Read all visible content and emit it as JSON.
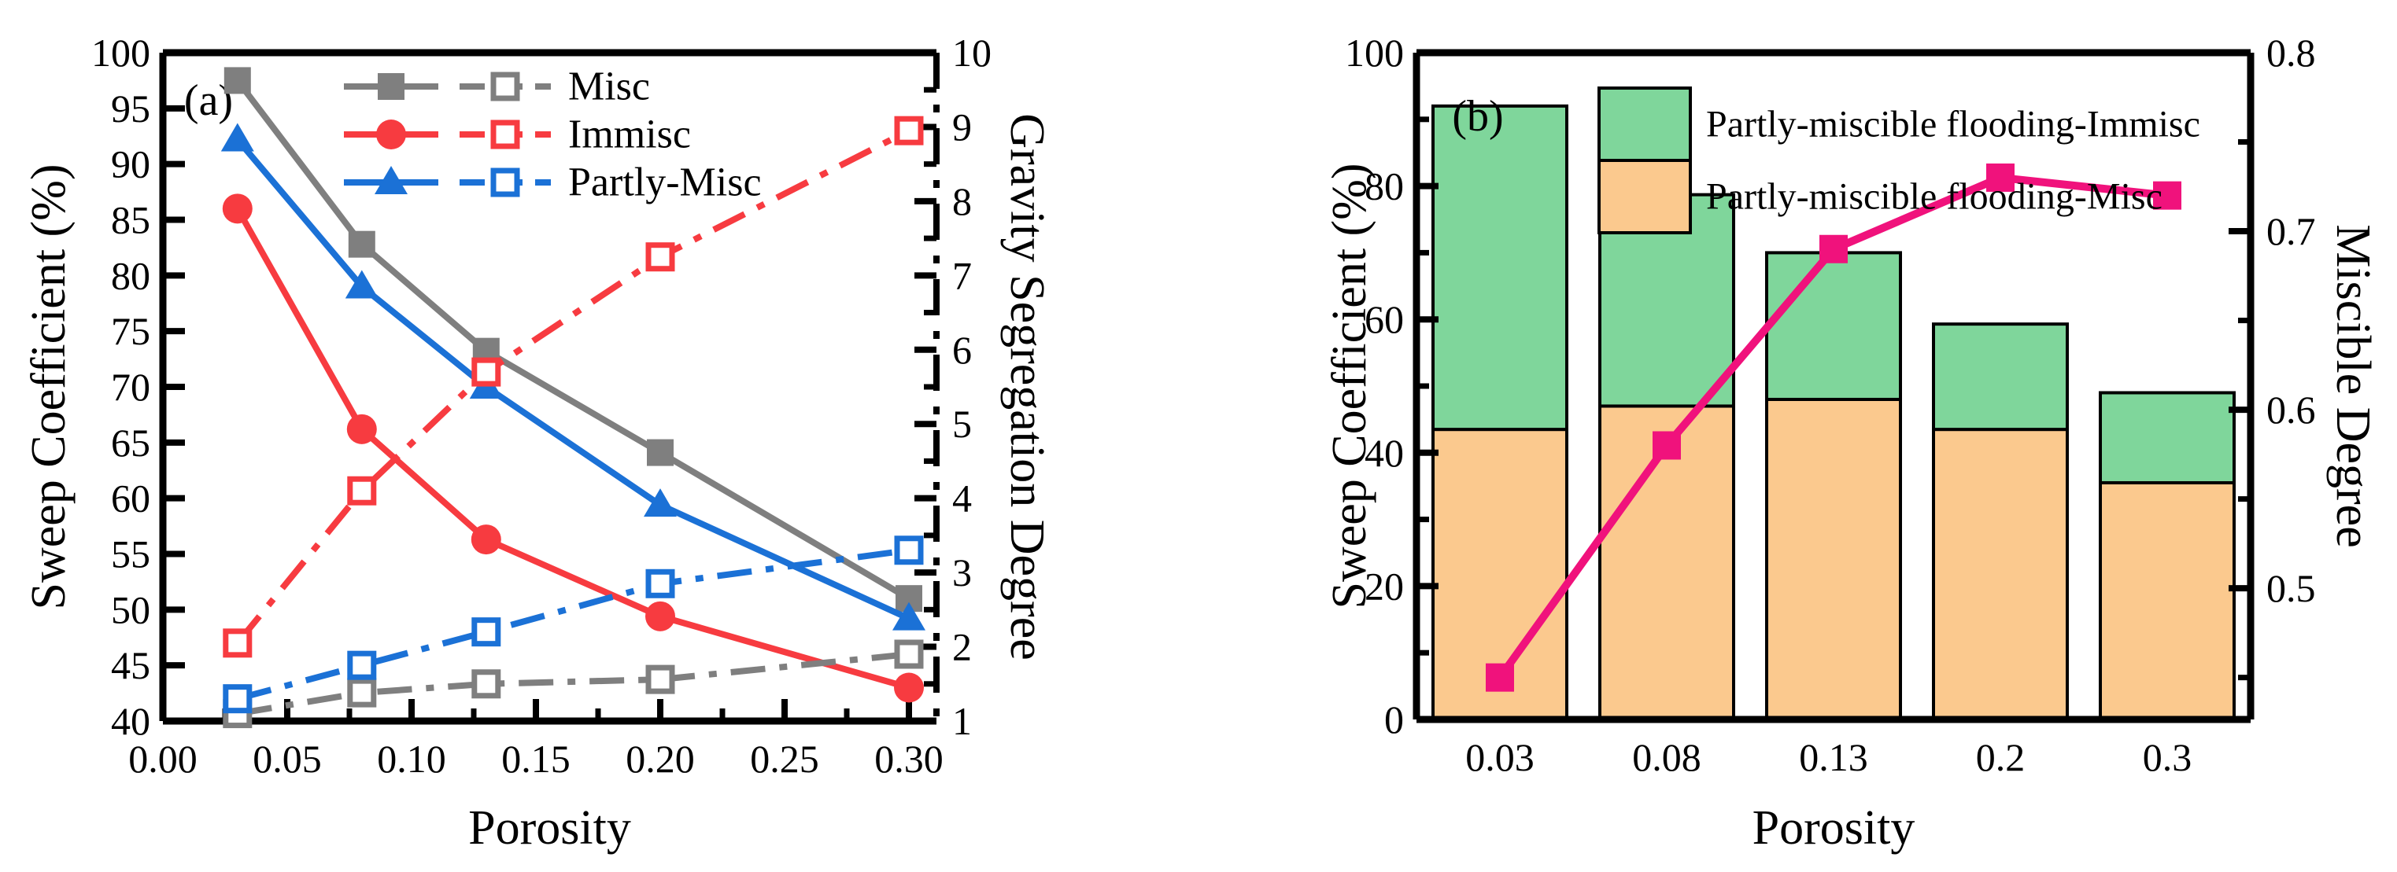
{
  "figure_colors": {
    "gray": "#7f7f7f",
    "red": "#f73b40",
    "blue": "#1b71d6",
    "pink": "#f0127c",
    "bar_green": "#7fd69b",
    "bar_orange": "#fbc98e",
    "axis": "#000000",
    "background": "#ffffff"
  },
  "chart_data": [
    {
      "type": "line",
      "panel_label": "(a)",
      "xlabel": "Porosity",
      "ylabel_left": "Sweep Coefficient (%)",
      "ylabel_right": "Gravity Segregation Degree",
      "xlim": [
        0.0,
        0.311
      ],
      "ylim_left": [
        40,
        100
      ],
      "ylim_right": [
        1,
        10
      ],
      "xtick_labels": [
        "0.00",
        "0.05",
        "0.10",
        "0.15",
        "0.20",
        "0.25",
        "0.30"
      ],
      "xtick_values": [
        0.0,
        0.05,
        0.1,
        0.15,
        0.2,
        0.25,
        0.3
      ],
      "xminor_step": 0.025,
      "ytick_left_labels": [
        "40",
        "45",
        "50",
        "55",
        "60",
        "65",
        "70",
        "75",
        "80",
        "85",
        "90",
        "95",
        "100"
      ],
      "ytick_left_values": [
        40,
        45,
        50,
        55,
        60,
        65,
        70,
        75,
        80,
        85,
        90,
        95,
        100
      ],
      "ytick_right_labels": [
        "1",
        "2",
        "3",
        "4",
        "5",
        "6",
        "7",
        "8",
        "9",
        "10"
      ],
      "ytick_right_values": [
        1,
        2,
        3,
        4,
        5,
        6,
        7,
        8,
        9,
        10
      ],
      "x": [
        0.03,
        0.08,
        0.13,
        0.2,
        0.3
      ],
      "legend": [
        {
          "label": "Misc",
          "color_key": "gray",
          "marker": "square"
        },
        {
          "label": "Immisc",
          "color_key": "red",
          "marker": "circle"
        },
        {
          "label": "Partly-Misc",
          "color_key": "blue",
          "marker": "triangle"
        }
      ],
      "series": [
        {
          "name": "Misc",
          "axis": "left",
          "style": "solid",
          "marker": "filled-square",
          "color_key": "gray",
          "values": [
            97.5,
            82.8,
            73.2,
            64.1,
            51.0
          ]
        },
        {
          "name": "Immisc",
          "axis": "left",
          "style": "solid",
          "marker": "filled-circle",
          "color_key": "red",
          "values": [
            86.0,
            66.2,
            56.3,
            49.4,
            43.0
          ]
        },
        {
          "name": "Partly-Misc",
          "axis": "left",
          "style": "solid",
          "marker": "filled-triangle",
          "color_key": "blue",
          "values": [
            92.2,
            79.0,
            70.0,
            59.4,
            49.2
          ]
        },
        {
          "name": "Misc",
          "axis": "right",
          "style": "dashdot",
          "marker": "open-square",
          "color_key": "gray",
          "values": [
            1.1,
            1.38,
            1.5,
            1.56,
            1.9
          ]
        },
        {
          "name": "Immisc",
          "axis": "right",
          "style": "dashdot",
          "marker": "open-square",
          "color_key": "red",
          "values": [
            2.05,
            4.1,
            5.7,
            7.25,
            8.95
          ]
        },
        {
          "name": "Partly-Misc",
          "axis": "right",
          "style": "dashdot",
          "marker": "open-square",
          "color_key": "blue",
          "values": [
            1.3,
            1.75,
            2.2,
            2.85,
            3.3
          ]
        }
      ]
    },
    {
      "type": "bar-line",
      "panel_label": "(b)",
      "xlabel": "Porosity",
      "ylabel_left": "Sweep Coefficient (%)",
      "ylabel_right": "Miscible Degree",
      "categories": [
        "0.03",
        "0.08",
        "0.13",
        "0.2",
        "0.3"
      ],
      "ylim_left": [
        0,
        100
      ],
      "ylim_right": [
        0.4265,
        0.8
      ],
      "ytick_left_labels": [
        "0",
        "20",
        "40",
        "60",
        "80",
        "100"
      ],
      "ytick_left_values": [
        0,
        20,
        40,
        60,
        80,
        100
      ],
      "yminor_left_values": [
        10,
        30,
        50,
        70,
        90
      ],
      "ytick_right_labels": [
        "0.5",
        "0.6",
        "0.7",
        "0.8"
      ],
      "ytick_right_values": [
        0.5,
        0.6,
        0.7,
        0.8
      ],
      "yminor_right_values": [
        0.45,
        0.55,
        0.65,
        0.75
      ],
      "bar_series": [
        {
          "name": "Partly-miscible flooding-Misc",
          "color_key": "bar_orange",
          "values": [
            43.5,
            47.0,
            48.0,
            43.5,
            35.5
          ]
        },
        {
          "name": "Partly-miscible flooding-Immisc",
          "color_key": "bar_green",
          "values": [
            48.5,
            31.7,
            22.0,
            15.8,
            13.5
          ]
        }
      ],
      "legend": [
        {
          "label": "Partly-miscible flooding-Immisc",
          "color_key": "bar_green"
        },
        {
          "label": "Partly-miscible flooding-Misc",
          "color_key": "bar_orange"
        }
      ],
      "line_series": {
        "name": "Miscible Degree",
        "axis": "right",
        "color_key": "pink",
        "marker": "filled-square",
        "values": [
          0.45,
          0.58,
          0.69,
          0.73,
          0.72
        ]
      }
    }
  ]
}
